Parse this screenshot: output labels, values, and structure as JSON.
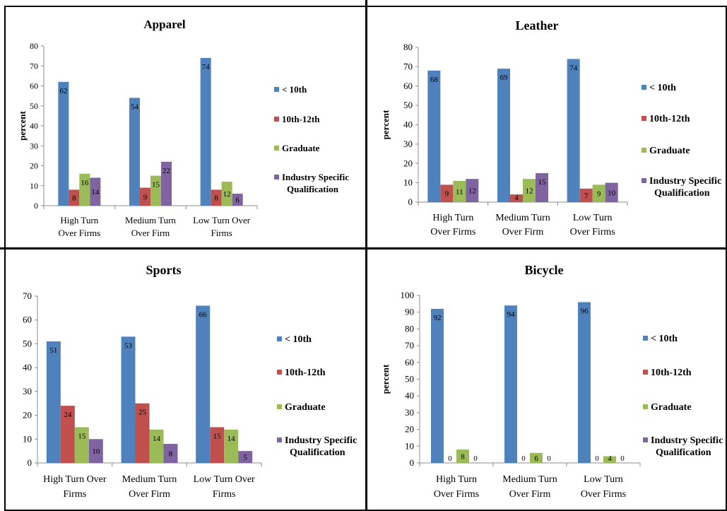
{
  "colors": {
    "lt10": "#4f81bd",
    "grade10_12": "#c0504d",
    "graduate": "#9bbb59",
    "industry": "#8064a2"
  },
  "chart_data": [
    {
      "type": "bar",
      "title": "Apparel",
      "ylabel": "percent",
      "ylim": [
        0,
        80
      ],
      "yticks": [
        0,
        10,
        20,
        30,
        40,
        50,
        60,
        70,
        80
      ],
      "categories": [
        [
          "High Turn",
          "Over Firms"
        ],
        [
          "Medium Turn",
          "Over Firm"
        ],
        [
          "Low Turn Over",
          "Firms"
        ]
      ],
      "series": [
        {
          "name": [
            "< 10th"
          ],
          "values": [
            62,
            54,
            74
          ]
        },
        {
          "name": [
            "10th-12th"
          ],
          "values": [
            8,
            9,
            8
          ]
        },
        {
          "name": [
            "Graduate"
          ],
          "values": [
            16,
            15,
            12
          ]
        },
        {
          "name": [
            "Industry Specific",
            "Qualification"
          ],
          "values": [
            14,
            22,
            6
          ]
        }
      ],
      "legend": "right",
      "grid": false
    },
    {
      "type": "bar",
      "title": "Leather",
      "ylabel": "percent",
      "ylim": [
        0,
        80
      ],
      "yticks": [
        0,
        10,
        20,
        30,
        40,
        50,
        60,
        70,
        80
      ],
      "categories": [
        [
          "High Turn",
          "Over Firms"
        ],
        [
          "Medium Turn",
          "Over Firm"
        ],
        [
          "Low Turn",
          "Over Firms"
        ]
      ],
      "series": [
        {
          "name": [
            "< 10th"
          ],
          "values": [
            68,
            69,
            74
          ]
        },
        {
          "name": [
            "10th-12th"
          ],
          "values": [
            9,
            4,
            7
          ]
        },
        {
          "name": [
            "Graduate"
          ],
          "values": [
            11,
            12,
            9
          ]
        },
        {
          "name": [
            "Industry Specific",
            "Qualification"
          ],
          "values": [
            12,
            15,
            10
          ]
        }
      ],
      "legend": "right",
      "grid": false
    },
    {
      "type": "bar",
      "title": "Sports",
      "ylabel": "",
      "ylim": [
        0,
        70
      ],
      "yticks": [
        0,
        10,
        20,
        30,
        40,
        50,
        60,
        70
      ],
      "categories": [
        [
          "High Turn Over",
          "Firms"
        ],
        [
          "Medium Turn",
          "Over Firm"
        ],
        [
          "Low Turn Over",
          "Firms"
        ]
      ],
      "series": [
        {
          "name": [
            "< 10th"
          ],
          "values": [
            51,
            53,
            66
          ]
        },
        {
          "name": [
            "10th-12th"
          ],
          "values": [
            24,
            25,
            15
          ]
        },
        {
          "name": [
            "Graduate"
          ],
          "values": [
            15,
            14,
            14
          ]
        },
        {
          "name": [
            "Industry Specific",
            "Qualification"
          ],
          "values": [
            10,
            8,
            5
          ]
        }
      ],
      "legend": "right",
      "grid": false
    },
    {
      "type": "bar",
      "title": "Bicycle",
      "ylabel": "percent",
      "ylim": [
        0,
        100
      ],
      "yticks": [
        0,
        10,
        20,
        30,
        40,
        50,
        60,
        70,
        80,
        90,
        100
      ],
      "categories": [
        [
          "High Turn",
          "Over Firms"
        ],
        [
          "Medium Turn",
          "Over Firm"
        ],
        [
          "Low Turn",
          "Over Firms"
        ]
      ],
      "series": [
        {
          "name": [
            "< 10th"
          ],
          "values": [
            92,
            94,
            96
          ]
        },
        {
          "name": [
            "10th-12th"
          ],
          "values": [
            0,
            0,
            0
          ]
        },
        {
          "name": [
            "Graduate"
          ],
          "values": [
            8,
            6,
            4
          ]
        },
        {
          "name": [
            "Industry Specific",
            "Qualification"
          ],
          "values": [
            0,
            0,
            0
          ]
        }
      ],
      "legend": "right",
      "grid": false
    }
  ]
}
